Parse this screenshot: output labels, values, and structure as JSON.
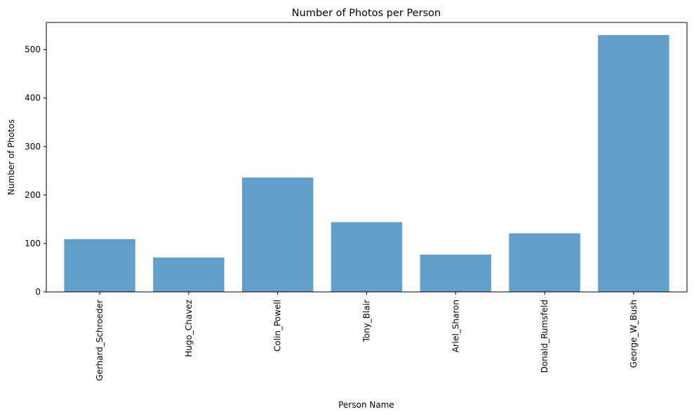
{
  "chart_data": {
    "type": "bar",
    "title": "Number of Photos per Person",
    "xlabel": "Person Name",
    "ylabel": "Number of Photos",
    "categories": [
      "Gerhard_Schroeder",
      "Hugo_Chavez",
      "Colin_Powell",
      "Tony_Blair",
      "Ariel_Sharon",
      "Donald_Rumsfeld",
      "George_W_Bush"
    ],
    "values": [
      109,
      71,
      236,
      144,
      77,
      121,
      530
    ],
    "ylim": [
      0,
      556
    ],
    "yticks": [
      0,
      100,
      200,
      300,
      400,
      500
    ],
    "bar_color": "#1f77b4",
    "bar_opacity": 0.7,
    "grid": false,
    "legend": "none"
  }
}
